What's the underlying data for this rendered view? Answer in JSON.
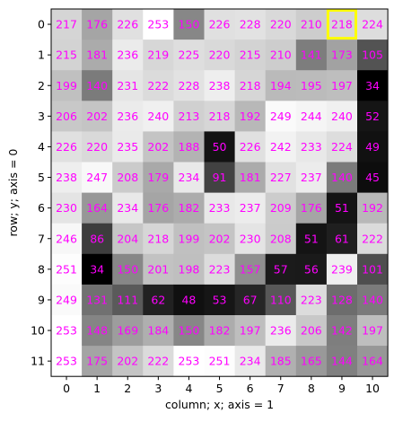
{
  "chart_data": {
    "type": "heatmap",
    "colormap": "gray",
    "vmin": 34,
    "vmax": 253,
    "annotation_color": "#ff00ff",
    "highlight": {
      "row": 0,
      "col": 9,
      "color": "#ffff00"
    },
    "xlabel": "column; x; axis = 1",
    "ylabel": "row; y; axis = 0",
    "x_ticks": [
      "0",
      "1",
      "2",
      "3",
      "4",
      "5",
      "6",
      "7",
      "8",
      "9",
      "10"
    ],
    "y_ticks": [
      "0",
      "1",
      "2",
      "3",
      "4",
      "5",
      "6",
      "7",
      "8",
      "9",
      "10",
      "11"
    ],
    "values": [
      [
        217,
        176,
        226,
        253,
        150,
        226,
        228,
        220,
        210,
        218,
        224
      ],
      [
        215,
        181,
        236,
        219,
        225,
        220,
        215,
        210,
        141,
        173,
        105
      ],
      [
        199,
        140,
        231,
        222,
        228,
        238,
        218,
        194,
        195,
        197,
        34
      ],
      [
        206,
        202,
        236,
        240,
        213,
        218,
        192,
        249,
        244,
        240,
        52
      ],
      [
        226,
        220,
        235,
        202,
        188,
        50,
        226,
        242,
        233,
        224,
        49
      ],
      [
        238,
        247,
        208,
        179,
        234,
        91,
        181,
        227,
        237,
        140,
        45
      ],
      [
        230,
        164,
        234,
        176,
        182,
        233,
        237,
        209,
        176,
        51,
        192
      ],
      [
        246,
        86,
        204,
        218,
        199,
        202,
        230,
        208,
        51,
        61,
        222
      ],
      [
        251,
        34,
        150,
        201,
        198,
        223,
        157,
        57,
        56,
        239,
        101
      ],
      [
        249,
        131,
        111,
        62,
        48,
        53,
        67,
        110,
        223,
        128,
        140
      ],
      [
        253,
        148,
        169,
        184,
        150,
        182,
        197,
        236,
        206,
        142,
        197
      ],
      [
        253,
        175,
        202,
        222,
        253,
        251,
        234,
        185,
        165,
        144,
        164
      ]
    ]
  }
}
